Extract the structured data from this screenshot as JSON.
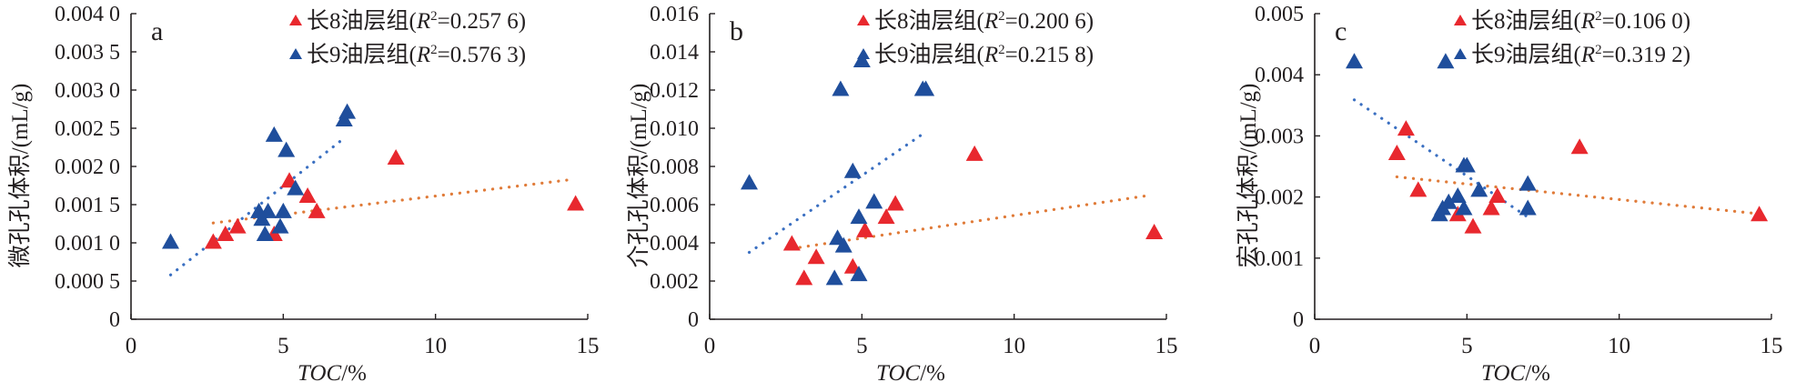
{
  "chart_data": [
    {
      "type": "scatter",
      "panel_label": "a",
      "title": "",
      "xlabel": "TOC/%",
      "ylabel": "微孔孔体积/(mL/g)",
      "xlim": [
        0,
        15
      ],
      "ylim": [
        0,
        0.004
      ],
      "xticks": [
        0,
        5,
        10,
        15
      ],
      "xtick_labels": [
        "0",
        "5",
        "10",
        "15"
      ],
      "yticks": [
        0,
        0.0005,
        0.001,
        0.0015,
        0.002,
        0.0025,
        0.003,
        0.0035,
        0.004
      ],
      "ytick_labels": [
        "0",
        "0.000 5",
        "0.001 0",
        "0.001 5",
        "0.002 0",
        "0.002 5",
        "0.003 0",
        "0.003 5",
        "0.004 0"
      ],
      "grid": false,
      "legend_position": "top-right",
      "series": [
        {
          "name": "长8油层组",
          "r2": "0.257 6",
          "color": "#e8282e",
          "trend_color": "#e07b39",
          "x": [
            2.7,
            3.1,
            3.5,
            4.7,
            5.2,
            5.8,
            6.1,
            8.7,
            14.6
          ],
          "y": [
            0.001,
            0.0011,
            0.0012,
            0.0011,
            0.0018,
            0.0016,
            0.0014,
            0.0021,
            0.0015
          ],
          "trendline": {
            "x": [
              2.7,
              14.5
            ],
            "y": [
              0.00126,
              0.00183
            ]
          }
        },
        {
          "name": "长9油层组",
          "r2": "0.576 3",
          "color": "#1f4e9c",
          "trend_color": "#3a6fc1",
          "x": [
            1.3,
            4.2,
            4.3,
            4.4,
            4.5,
            4.7,
            4.9,
            5.0,
            5.1,
            5.4,
            7.0,
            7.1
          ],
          "y": [
            0.001,
            0.0014,
            0.0013,
            0.0011,
            0.0014,
            0.0024,
            0.0012,
            0.0014,
            0.0022,
            0.0017,
            0.0026,
            0.0027
          ],
          "trendline": {
            "x": [
              1.3,
              7.0
            ],
            "y": [
              0.00058,
              0.00237
            ]
          }
        }
      ]
    },
    {
      "type": "scatter",
      "panel_label": "b",
      "title": "",
      "xlabel": "TOC/%",
      "ylabel": "介孔孔体积/(mL/g)",
      "xlim": [
        0,
        15
      ],
      "ylim": [
        0,
        0.016
      ],
      "xticks": [
        0,
        5,
        10,
        15
      ],
      "xtick_labels": [
        "0",
        "5",
        "10",
        "15"
      ],
      "yticks": [
        0,
        0.002,
        0.004,
        0.006,
        0.008,
        0.01,
        0.012,
        0.014,
        0.016
      ],
      "ytick_labels": [
        "0",
        "0.002",
        "0.004",
        "0.006",
        "0.008",
        "0.010",
        "0.012",
        "0.014",
        "0.016"
      ],
      "grid": false,
      "legend_position": "top-right",
      "series": [
        {
          "name": "长8油层组",
          "r2": "0.200 6",
          "color": "#e8282e",
          "trend_color": "#e07b39",
          "x": [
            2.7,
            3.1,
            3.5,
            4.7,
            5.1,
            5.8,
            6.1,
            8.7,
            14.6
          ],
          "y": [
            0.0039,
            0.0021,
            0.0032,
            0.0027,
            0.0046,
            0.0053,
            0.006,
            0.0086,
            0.0045
          ],
          "trendline": {
            "x": [
              2.7,
              14.5
            ],
            "y": [
              0.0037,
              0.0065
            ]
          }
        },
        {
          "name": "长9油层组",
          "r2": "0.215 8",
          "color": "#1f4e9c",
          "trend_color": "#3a6fc1",
          "x": [
            1.3,
            4.1,
            4.2,
            4.3,
            4.4,
            4.7,
            4.9,
            4.9,
            5.0,
            5.4,
            7.0,
            7.1
          ],
          "y": [
            0.0071,
            0.0021,
            0.0042,
            0.012,
            0.0038,
            0.0077,
            0.0053,
            0.0023,
            0.0135,
            0.0061,
            0.012,
            0.012
          ],
          "trendline": {
            "x": [
              1.3,
              7.0
            ],
            "y": [
              0.0035,
              0.0097
            ]
          }
        }
      ]
    },
    {
      "type": "scatter",
      "panel_label": "c",
      "title": "",
      "xlabel": "TOC/%",
      "ylabel": "宏孔孔体积/(mL/g)",
      "xlim": [
        0,
        15
      ],
      "ylim": [
        0,
        0.005
      ],
      "xticks": [
        0,
        5,
        10,
        15
      ],
      "xtick_labels": [
        "0",
        "5",
        "10",
        "15"
      ],
      "yticks": [
        0,
        0.001,
        0.002,
        0.003,
        0.004,
        0.005
      ],
      "ytick_labels": [
        "0",
        "0.001",
        "0.002",
        "0.003",
        "0.004",
        "0.005"
      ],
      "grid": false,
      "legend_position": "top-right",
      "series": [
        {
          "name": "长8油层组",
          "r2": "0.106 0",
          "color": "#e8282e",
          "trend_color": "#e07b39",
          "x": [
            2.7,
            3.0,
            3.4,
            4.7,
            5.2,
            5.8,
            6.0,
            8.7,
            14.6
          ],
          "y": [
            0.0027,
            0.0031,
            0.0021,
            0.0017,
            0.0015,
            0.0018,
            0.002,
            0.0028,
            0.0017
          ],
          "trendline": {
            "x": [
              2.7,
              14.5
            ],
            "y": [
              0.00233,
              0.00173
            ]
          }
        },
        {
          "name": "长9油层组",
          "r2": "0.319 2",
          "color": "#1f4e9c",
          "trend_color": "#3a6fc1",
          "x": [
            1.3,
            4.1,
            4.2,
            4.3,
            4.4,
            4.7,
            4.9,
            4.9,
            5.0,
            5.4,
            7.0,
            7.0
          ],
          "y": [
            0.0042,
            0.0017,
            0.0018,
            0.0042,
            0.0019,
            0.002,
            0.0018,
            0.0025,
            0.0025,
            0.0021,
            0.0022,
            0.0018
          ],
          "trendline": {
            "x": [
              1.3,
              7.0
            ],
            "y": [
              0.00359,
              0.00167
            ]
          }
        }
      ]
    }
  ]
}
